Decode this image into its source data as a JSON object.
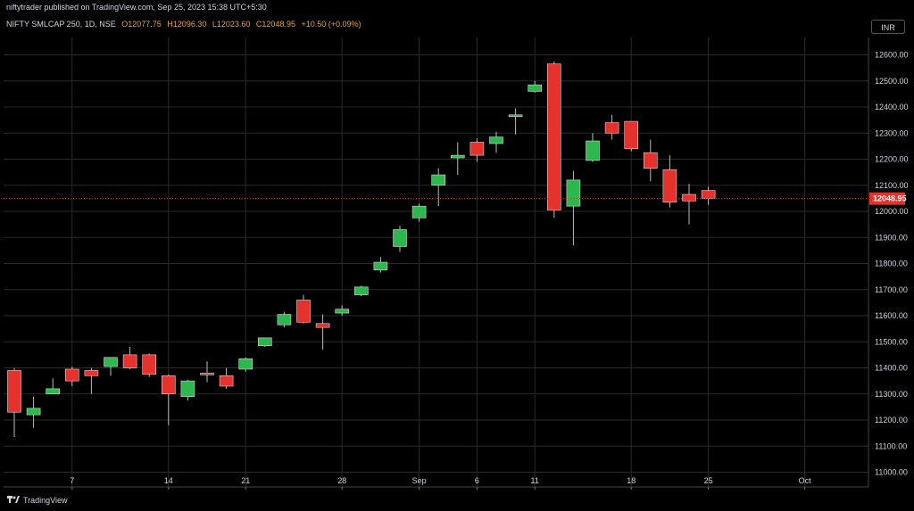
{
  "header": {
    "published": "niftytrader published on TradingView.com, Sep 25, 2023 15:38 UTC+5:30"
  },
  "legend": {
    "symbol": "NIFTY SMLCAP 250, 1D, NSE",
    "open": "O12077.75",
    "high": "H12096.30",
    "low": "L12023.60",
    "close": "C12048.95",
    "change": "+10.50 (+0.09%)"
  },
  "currency_label": "INR",
  "last_price_label": "12048.95",
  "footer": {
    "brand": "TradingView"
  },
  "colors": {
    "up": "#2db84d",
    "down": "#e5322d",
    "grid": "#2a2a2a",
    "background": "#000000",
    "last_price_line": "#e5322d"
  },
  "chart_data": {
    "type": "candlestick",
    "title": "",
    "xlabel": "",
    "ylabel": "",
    "ylim": [
      11000,
      12700
    ],
    "y_ticks": [
      11000,
      11100,
      11200,
      11300,
      11400,
      11500,
      11600,
      11700,
      11800,
      11900,
      12000,
      12100,
      12200,
      12300,
      12400,
      12500,
      12600
    ],
    "y_tick_labels": [
      "11000.00",
      "11100.00",
      "11200.00",
      "11300.00",
      "11400.00",
      "11500.00",
      "11600.00",
      "11700.00",
      "11800.00",
      "11900.00",
      "12000.00",
      "12100.00",
      "12200.00",
      "12300.00",
      "12400.00",
      "12500.00",
      "12600.00"
    ],
    "x_tick_labels": [
      {
        "label": "7",
        "bar": 3
      },
      {
        "label": "14",
        "bar": 8
      },
      {
        "label": "21",
        "bar": 12
      },
      {
        "label": "28",
        "bar": 17
      },
      {
        "label": "Sep",
        "bar": 21
      },
      {
        "label": "6",
        "bar": 24
      },
      {
        "label": "11",
        "bar": 27
      },
      {
        "label": "18",
        "bar": 32
      },
      {
        "label": "25",
        "bar": 36
      },
      {
        "label": "Oct",
        "bar": 41
      }
    ],
    "candles": [
      {
        "o": 11390,
        "h": 11400,
        "l": 11135,
        "c": 11230
      },
      {
        "o": 11220,
        "h": 11290,
        "l": 11170,
        "c": 11245
      },
      {
        "o": 11300,
        "h": 11360,
        "l": 11300,
        "c": 11320
      },
      {
        "o": 11395,
        "h": 11405,
        "l": 11330,
        "c": 11350
      },
      {
        "o": 11390,
        "h": 11400,
        "l": 11300,
        "c": 11370
      },
      {
        "o": 11405,
        "h": 11440,
        "l": 11370,
        "c": 11440
      },
      {
        "o": 11450,
        "h": 11480,
        "l": 11395,
        "c": 11400
      },
      {
        "o": 11450,
        "h": 11455,
        "l": 11365,
        "c": 11375
      },
      {
        "o": 11370,
        "h": 11375,
        "l": 11180,
        "c": 11300
      },
      {
        "o": 11290,
        "h": 11355,
        "l": 11275,
        "c": 11350
      },
      {
        "o": 11380,
        "h": 11425,
        "l": 11345,
        "c": 11375
      },
      {
        "o": 11370,
        "h": 11400,
        "l": 11320,
        "c": 11330
      },
      {
        "o": 11395,
        "h": 11440,
        "l": 11385,
        "c": 11435
      },
      {
        "o": 11485,
        "h": 11515,
        "l": 11480,
        "c": 11515
      },
      {
        "o": 11565,
        "h": 11615,
        "l": 11555,
        "c": 11605
      },
      {
        "o": 11660,
        "h": 11680,
        "l": 11570,
        "c": 11575
      },
      {
        "o": 11570,
        "h": 11605,
        "l": 11470,
        "c": 11555
      },
      {
        "o": 11610,
        "h": 11640,
        "l": 11600,
        "c": 11625
      },
      {
        "o": 11680,
        "h": 11715,
        "l": 11675,
        "c": 11710
      },
      {
        "o": 11775,
        "h": 11825,
        "l": 11765,
        "c": 11805
      },
      {
        "o": 11865,
        "h": 11945,
        "l": 11845,
        "c": 11930
      },
      {
        "o": 11975,
        "h": 12030,
        "l": 11960,
        "c": 12020
      },
      {
        "o": 12100,
        "h": 12165,
        "l": 12020,
        "c": 12140
      },
      {
        "o": 12205,
        "h": 12265,
        "l": 12140,
        "c": 12215
      },
      {
        "o": 12265,
        "h": 12280,
        "l": 12190,
        "c": 12215
      },
      {
        "o": 12260,
        "h": 12305,
        "l": 12225,
        "c": 12285
      },
      {
        "o": 12365,
        "h": 12395,
        "l": 12295,
        "c": 12370
      },
      {
        "o": 12460,
        "h": 12500,
        "l": 12455,
        "c": 12485
      },
      {
        "o": 12565,
        "h": 12575,
        "l": 11975,
        "c": 12005
      },
      {
        "o": 12020,
        "h": 12155,
        "l": 11870,
        "c": 12120
      },
      {
        "o": 12195,
        "h": 12300,
        "l": 12190,
        "c": 12270
      },
      {
        "o": 12340,
        "h": 12370,
        "l": 12275,
        "c": 12300
      },
      {
        "o": 12345,
        "h": 12345,
        "l": 12230,
        "c": 12240
      },
      {
        "o": 12225,
        "h": 12275,
        "l": 12115,
        "c": 12165
      },
      {
        "o": 12160,
        "h": 12215,
        "l": 12015,
        "c": 12035
      },
      {
        "o": 12065,
        "h": 12105,
        "l": 11950,
        "c": 12040
      },
      {
        "o": 12080,
        "h": 12095,
        "l": 12025,
        "c": 12050
      }
    ],
    "last_price": 12048.95
  }
}
